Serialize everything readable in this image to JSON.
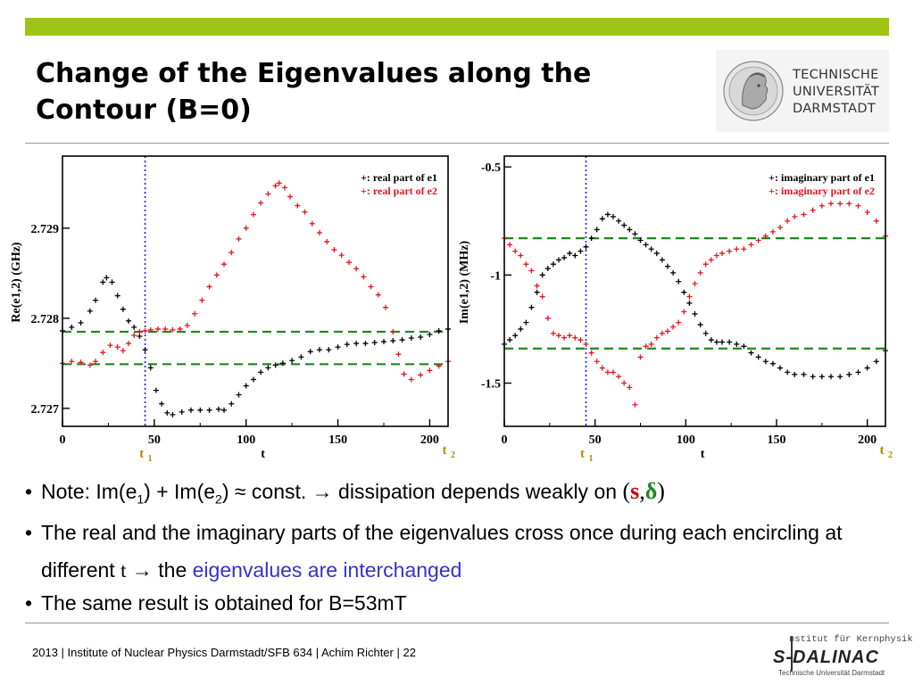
{
  "slide": {
    "title_line1": "Change of the Eigenvalues along the",
    "title_line2": "Contour (B=0)"
  },
  "logos": {
    "tu_line1": "TECHNISCHE",
    "tu_line2": "UNIVERSITÄT",
    "tu_line3": "DARMSTADT",
    "sdalinac_small": "nstitut für Kernphysik",
    "sdalinac_name": "S-DALINAC",
    "sdalinac_sub": "Technische Universität Darmstadt"
  },
  "colors": {
    "accent_bar": "#a0c414",
    "series_black": "#000000",
    "series_red": "#e8141e",
    "reference_dashed": "#1a8a1a",
    "t1_marker": "#1a1ae6",
    "t_label": "#b48c00",
    "highlight_text": "#3333cc",
    "symbol_s": "#cc0000",
    "symbol_delta": "#1a8a1a"
  },
  "marker_labels": {
    "t1": "t",
    "t1_sub": "1",
    "t2": "t",
    "t2_sub": "2"
  },
  "bullets": {
    "b1_prefix": "Note: Im(e",
    "b1_sub1": "1",
    "b1_mid1": ") + Im(e",
    "b1_sub2": "2",
    "b1_mid2": ") ≈ const. → dissipation depends weakly on ",
    "b1_open": "(",
    "b1_s": "s",
    "b1_comma": ",",
    "b1_delta": "δ",
    "b1_close": ")",
    "b2_text": "The real and the imaginary parts of the eigenvalues cross once during each encircling at different ",
    "b2_t": "t",
    "b2_arrow": " → the ",
    "b2_highlight": "eigenvalues are interchanged",
    "b3_text": "The same result is obtained for B=53mT"
  },
  "footer": {
    "text": "2013  |  Institute of Nuclear Physics Darmstadt/SFB 634 |  Achim Richter  |  22"
  },
  "chart_data": [
    {
      "type": "scatter",
      "title": "",
      "xlabel": "t",
      "ylabel": "Re(e1,2) (GHz)",
      "xlim": [
        0,
        210
      ],
      "ylim": [
        2.7268,
        2.7298
      ],
      "x_ticks": [
        "0",
        "50",
        "100",
        "150",
        "200"
      ],
      "y_ticks": [
        {
          "v": 2.727,
          "label": "2.727"
        },
        {
          "v": 2.728,
          "label": "2.728"
        },
        {
          "v": 2.729,
          "label": "2.729"
        }
      ],
      "vline_t1": 45,
      "hlines": [
        2.72785,
        2.72749
      ],
      "legend_position": "top-right",
      "series": [
        {
          "name": "+: real part of e1",
          "color": "#000000",
          "points": [
            [
              0,
              2.72786
            ],
            [
              5,
              2.7279
            ],
            [
              10,
              2.72795
            ],
            [
              15,
              2.72808
            ],
            [
              18,
              2.7282
            ],
            [
              22,
              2.7284
            ],
            [
              24,
              2.72845
            ],
            [
              27,
              2.7284
            ],
            [
              30,
              2.72825
            ],
            [
              33,
              2.7281
            ],
            [
              36,
              2.72797
            ],
            [
              39,
              2.7279
            ],
            [
              42,
              2.7278
            ],
            [
              45,
              2.72765
            ],
            [
              48,
              2.72745
            ],
            [
              51,
              2.7272
            ],
            [
              54,
              2.72705
            ],
            [
              57,
              2.72695
            ],
            [
              60,
              2.72693
            ],
            [
              65,
              2.72696
            ],
            [
              70,
              2.72698
            ],
            [
              75,
              2.72698
            ],
            [
              80,
              2.72698
            ],
            [
              85,
              2.72699
            ],
            [
              88,
              2.72698
            ],
            [
              92,
              2.72705
            ],
            [
              96,
              2.72715
            ],
            [
              100,
              2.72725
            ],
            [
              104,
              2.72732
            ],
            [
              108,
              2.7274
            ],
            [
              112,
              2.72745
            ],
            [
              116,
              2.72748
            ],
            [
              120,
              2.7275
            ],
            [
              125,
              2.72753
            ],
            [
              130,
              2.72757
            ],
            [
              135,
              2.72763
            ],
            [
              140,
              2.72765
            ],
            [
              145,
              2.72765
            ],
            [
              150,
              2.72768
            ],
            [
              155,
              2.72771
            ],
            [
              160,
              2.72772
            ],
            [
              165,
              2.72772
            ],
            [
              170,
              2.72773
            ],
            [
              175,
              2.72774
            ],
            [
              180,
              2.72775
            ],
            [
              185,
              2.72776
            ],
            [
              190,
              2.72778
            ],
            [
              195,
              2.72779
            ],
            [
              200,
              2.72782
            ],
            [
              205,
              2.72786
            ],
            [
              210,
              2.72788
            ]
          ]
        },
        {
          "name": "+: real part of e2",
          "color": "#e8141e",
          "points": [
            [
              0,
              2.7275
            ],
            [
              5,
              2.72752
            ],
            [
              10,
              2.72751
            ],
            [
              15,
              2.72748
            ],
            [
              18,
              2.72752
            ],
            [
              22,
              2.72762
            ],
            [
              26,
              2.7277
            ],
            [
              30,
              2.72768
            ],
            [
              33,
              2.72764
            ],
            [
              36,
              2.72772
            ],
            [
              39,
              2.72781
            ],
            [
              42,
              2.72785
            ],
            [
              45,
              2.72786
            ],
            [
              48,
              2.72787
            ],
            [
              52,
              2.72788
            ],
            [
              56,
              2.72788
            ],
            [
              60,
              2.72787
            ],
            [
              64,
              2.72788
            ],
            [
              68,
              2.72792
            ],
            [
              72,
              2.72805
            ],
            [
              76,
              2.7282
            ],
            [
              80,
              2.72835
            ],
            [
              84,
              2.72848
            ],
            [
              88,
              2.7286
            ],
            [
              92,
              2.72873
            ],
            [
              96,
              2.72888
            ],
            [
              100,
              2.729
            ],
            [
              104,
              2.72915
            ],
            [
              108,
              2.72928
            ],
            [
              112,
              2.72938
            ],
            [
              116,
              2.72947
            ],
            [
              118,
              2.7295
            ],
            [
              121,
              2.72945
            ],
            [
              124,
              2.72935
            ],
            [
              128,
              2.72925
            ],
            [
              132,
              2.72918
            ],
            [
              136,
              2.72905
            ],
            [
              140,
              2.72895
            ],
            [
              144,
              2.72885
            ],
            [
              148,
              2.72876
            ],
            [
              152,
              2.7287
            ],
            [
              156,
              2.72862
            ],
            [
              160,
              2.72855
            ],
            [
              164,
              2.72846
            ],
            [
              168,
              2.72835
            ],
            [
              172,
              2.72826
            ],
            [
              176,
              2.72812
            ],
            [
              180,
              2.72785
            ],
            [
              183,
              2.7276
            ],
            [
              186,
              2.72738
            ],
            [
              190,
              2.72732
            ],
            [
              195,
              2.72737
            ],
            [
              200,
              2.72742
            ],
            [
              205,
              2.72747
            ],
            [
              210,
              2.72752
            ]
          ]
        }
      ]
    },
    {
      "type": "scatter",
      "title": "",
      "xlabel": "t",
      "ylabel": "Im(e1,2) (MHz)",
      "xlim": [
        0,
        210
      ],
      "ylim": [
        -1.7,
        -0.45
      ],
      "x_ticks": [
        "0",
        "50",
        "100",
        "150",
        "200"
      ],
      "y_ticks": [
        {
          "v": -0.5,
          "label": "-0.5"
        },
        {
          "v": -1,
          "label": "-1"
        },
        {
          "v": -1.5,
          "label": "-1.5"
        }
      ],
      "vline_t1": 45,
      "hlines": [
        -0.83,
        -1.34
      ],
      "legend_position": "top-right",
      "series": [
        {
          "name": "+: imaginary part of e1",
          "color": "#000000",
          "points": [
            [
              0,
              -1.32
            ],
            [
              3,
              -1.3
            ],
            [
              6,
              -1.28
            ],
            [
              9,
              -1.25
            ],
            [
              12,
              -1.22
            ],
            [
              15,
              -1.15
            ],
            [
              18,
              -1.08
            ],
            [
              21,
              -1.0
            ],
            [
              24,
              -0.97
            ],
            [
              27,
              -0.95
            ],
            [
              30,
              -0.93
            ],
            [
              33,
              -0.92
            ],
            [
              36,
              -0.9
            ],
            [
              39,
              -0.91
            ],
            [
              42,
              -0.89
            ],
            [
              45,
              -0.87
            ],
            [
              48,
              -0.83
            ],
            [
              51,
              -0.79
            ],
            [
              54,
              -0.74
            ],
            [
              57,
              -0.72
            ],
            [
              60,
              -0.73
            ],
            [
              63,
              -0.75
            ],
            [
              66,
              -0.77
            ],
            [
              69,
              -0.79
            ],
            [
              72,
              -0.81
            ],
            [
              75,
              -0.84
            ],
            [
              78,
              -0.86
            ],
            [
              81,
              -0.88
            ],
            [
              84,
              -0.9
            ],
            [
              87,
              -0.93
            ],
            [
              90,
              -0.96
            ],
            [
              93,
              -0.99
            ],
            [
              96,
              -1.03
            ],
            [
              99,
              -1.08
            ],
            [
              102,
              -1.13
            ],
            [
              105,
              -1.18
            ],
            [
              108,
              -1.23
            ],
            [
              111,
              -1.27
            ],
            [
              114,
              -1.3
            ],
            [
              117,
              -1.31
            ],
            [
              120,
              -1.31
            ],
            [
              124,
              -1.31
            ],
            [
              128,
              -1.32
            ],
            [
              132,
              -1.33
            ],
            [
              136,
              -1.36
            ],
            [
              140,
              -1.38
            ],
            [
              144,
              -1.4
            ],
            [
              148,
              -1.41
            ],
            [
              152,
              -1.43
            ],
            [
              156,
              -1.45
            ],
            [
              160,
              -1.46
            ],
            [
              165,
              -1.46
            ],
            [
              170,
              -1.47
            ],
            [
              175,
              -1.47
            ],
            [
              180,
              -1.47
            ],
            [
              185,
              -1.47
            ],
            [
              190,
              -1.46
            ],
            [
              195,
              -1.45
            ],
            [
              200,
              -1.43
            ],
            [
              205,
              -1.4
            ],
            [
              210,
              -1.35
            ]
          ]
        },
        {
          "name": "+: imaginary part of e2",
          "color": "#e8141e",
          "points": [
            [
              0,
              -0.83
            ],
            [
              3,
              -0.86
            ],
            [
              6,
              -0.89
            ],
            [
              9,
              -0.91
            ],
            [
              12,
              -0.95
            ],
            [
              15,
              -0.98
            ],
            [
              18,
              -1.05
            ],
            [
              21,
              -1.1
            ],
            [
              24,
              -1.2
            ],
            [
              27,
              -1.27
            ],
            [
              30,
              -1.28
            ],
            [
              33,
              -1.29
            ],
            [
              36,
              -1.28
            ],
            [
              39,
              -1.29
            ],
            [
              42,
              -1.3
            ],
            [
              45,
              -1.32
            ],
            [
              48,
              -1.36
            ],
            [
              51,
              -1.4
            ],
            [
              54,
              -1.43
            ],
            [
              57,
              -1.45
            ],
            [
              60,
              -1.45
            ],
            [
              63,
              -1.47
            ],
            [
              66,
              -1.5
            ],
            [
              69,
              -1.52
            ],
            [
              72,
              -1.6
            ],
            [
              75,
              -1.38
            ],
            [
              78,
              -1.33
            ],
            [
              81,
              -1.32
            ],
            [
              84,
              -1.29
            ],
            [
              87,
              -1.27
            ],
            [
              90,
              -1.26
            ],
            [
              93,
              -1.24
            ],
            [
              96,
              -1.22
            ],
            [
              99,
              -1.17
            ],
            [
              102,
              -1.1
            ],
            [
              105,
              -1.04
            ],
            [
              108,
              -0.99
            ],
            [
              111,
              -0.95
            ],
            [
              114,
              -0.93
            ],
            [
              117,
              -0.91
            ],
            [
              120,
              -0.9
            ],
            [
              124,
              -0.89
            ],
            [
              128,
              -0.88
            ],
            [
              132,
              -0.88
            ],
            [
              136,
              -0.86
            ],
            [
              140,
              -0.84
            ],
            [
              144,
              -0.82
            ],
            [
              148,
              -0.8
            ],
            [
              152,
              -0.78
            ],
            [
              156,
              -0.75
            ],
            [
              160,
              -0.73
            ],
            [
              165,
              -0.72
            ],
            [
              170,
              -0.7
            ],
            [
              175,
              -0.68
            ],
            [
              180,
              -0.67
            ],
            [
              185,
              -0.67
            ],
            [
              190,
              -0.67
            ],
            [
              195,
              -0.68
            ],
            [
              200,
              -0.71
            ],
            [
              205,
              -0.75
            ],
            [
              210,
              -0.82
            ]
          ]
        }
      ]
    }
  ]
}
